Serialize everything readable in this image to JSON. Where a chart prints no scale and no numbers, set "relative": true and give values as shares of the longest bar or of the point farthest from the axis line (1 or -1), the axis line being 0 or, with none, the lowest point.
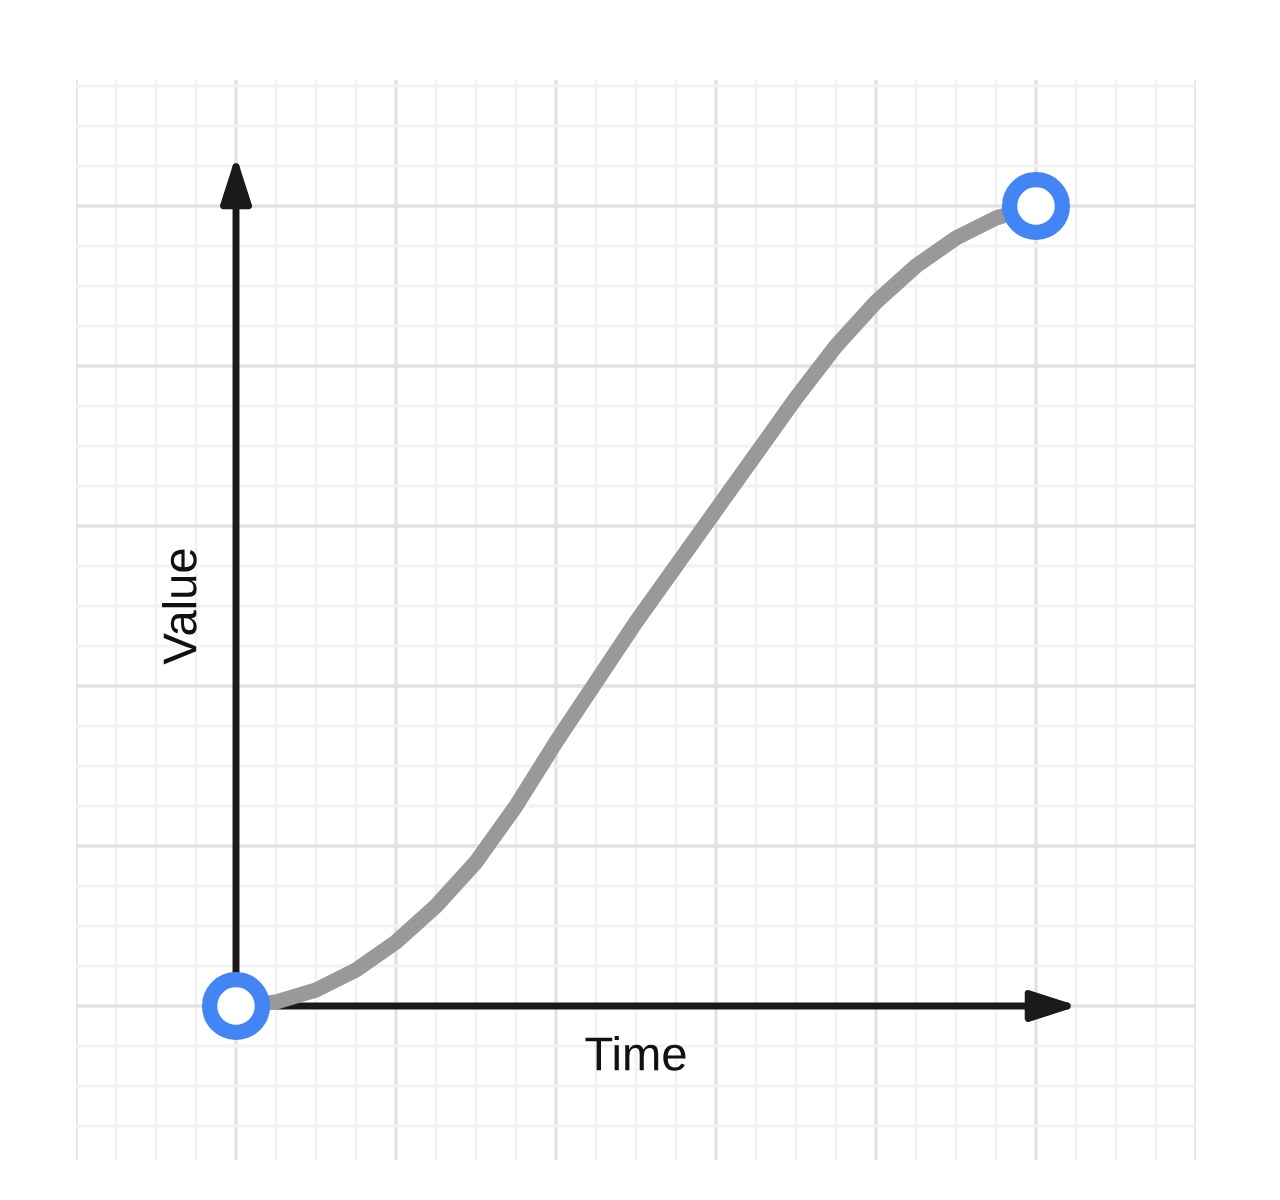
{
  "chart_data": {
    "type": "line",
    "xlabel": "Time",
    "ylabel": "Value",
    "relative": true,
    "grid": true,
    "categories": [
      null,
      null,
      null,
      null,
      null,
      null,
      null,
      null,
      null,
      null,
      null,
      null,
      null,
      null,
      null,
      null,
      null,
      null,
      null,
      null,
      null
    ],
    "series": [
      {
        "color": "#999999",
        "values": [
          0,
          0.005,
          0.02,
          0.045,
          0.08,
          0.125,
          0.18,
          0.25,
          0.33,
          0.405,
          0.48,
          0.55,
          0.62,
          0.69,
          0.76,
          0.825,
          0.88,
          0.925,
          0.96,
          0.985,
          1
        ]
      }
    ]
  }
}
